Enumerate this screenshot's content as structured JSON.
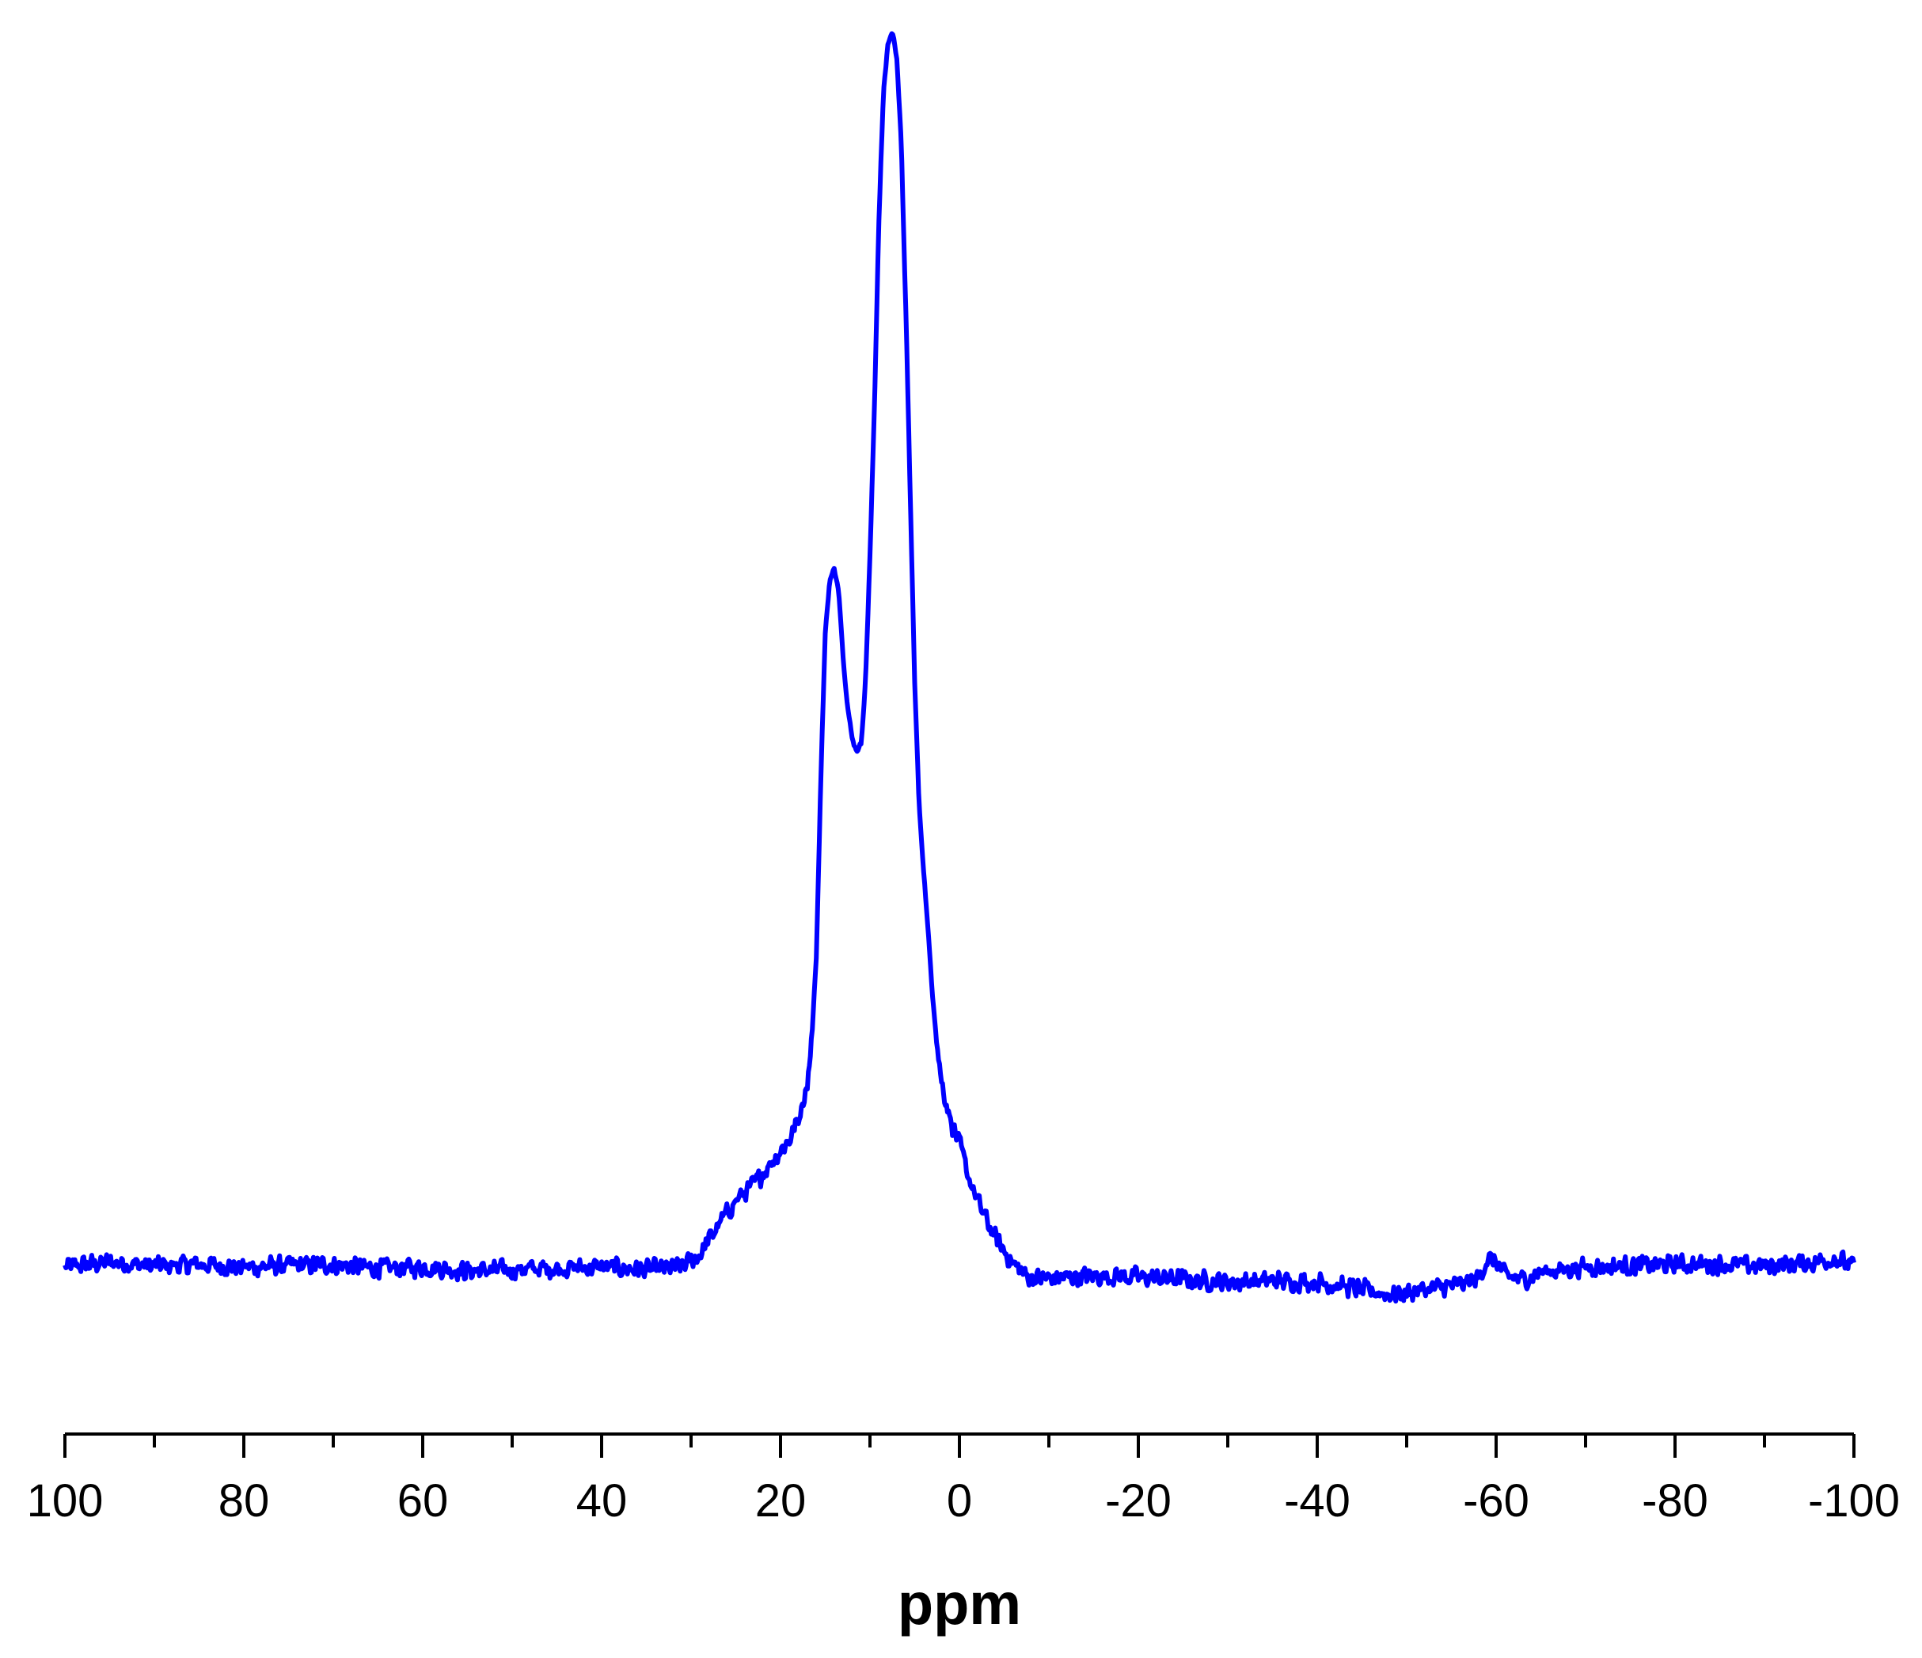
{
  "chart_data": {
    "type": "line",
    "title": "",
    "xlabel": "ppm",
    "ylabel": "",
    "xlim": [
      100,
      -100
    ],
    "x_reversed": true,
    "y_axis_shown": false,
    "grid": false,
    "legend": "none",
    "x_major_ticks": [
      100,
      80,
      60,
      40,
      20,
      0,
      -20,
      -40,
      -60,
      -80,
      -100
    ],
    "x_tick_labels": [
      "100",
      "80",
      "60",
      "40",
      "20",
      "0",
      "-20",
      "-40",
      "-60",
      "-80",
      "-100"
    ],
    "x_minor_ticks": [
      90,
      70,
      50,
      30,
      10,
      -10,
      -30,
      -50,
      -70,
      -90
    ],
    "series": [
      {
        "color": "#0000ff",
        "noise_amplitude": 0.9,
        "points": [
          [
            100,
            1.2
          ],
          [
            95,
            1.6
          ],
          [
            90,
            1.3
          ],
          [
            85,
            1.4
          ],
          [
            80,
            1.2
          ],
          [
            75,
            1.3
          ],
          [
            70,
            1.4
          ],
          [
            65,
            1.1
          ],
          [
            60,
            1.2
          ],
          [
            55,
            0.9
          ],
          [
            50,
            1.0
          ],
          [
            45,
            1.1
          ],
          [
            40,
            1.2
          ],
          [
            35,
            1.0
          ],
          [
            31,
            1.2
          ],
          [
            29,
            2.2
          ],
          [
            27,
            4.5
          ],
          [
            25,
            6.5
          ],
          [
            23,
            7.8
          ],
          [
            21,
            9.6
          ],
          [
            19,
            11.4
          ],
          [
            18,
            13.0
          ],
          [
            17,
            16.0
          ],
          [
            16.5,
            19.5
          ],
          [
            16,
            26.0
          ],
          [
            15.5,
            40.0
          ],
          [
            15,
            52.0
          ],
          [
            14.5,
            56.0
          ],
          [
            14,
            57.0
          ],
          [
            13.5,
            55.5
          ],
          [
            13,
            50.0
          ],
          [
            12.5,
            46.0
          ],
          [
            12,
            43.5
          ],
          [
            11.5,
            42.5
          ],
          [
            11,
            43.0
          ],
          [
            10.5,
            48.0
          ],
          [
            10,
            58.0
          ],
          [
            9.5,
            70.0
          ],
          [
            9,
            85.0
          ],
          [
            8.5,
            95.0
          ],
          [
            8,
            99.0
          ],
          [
            7.5,
            100.0
          ],
          [
            7,
            98.0
          ],
          [
            6.5,
            91.0
          ],
          [
            6,
            78.0
          ],
          [
            5.5,
            63.0
          ],
          [
            5,
            48.0
          ],
          [
            4.5,
            38.0
          ],
          [
            4,
            33.0
          ],
          [
            3.5,
            28.0
          ],
          [
            3,
            23.0
          ],
          [
            2.5,
            19.0
          ],
          [
            2,
            16.0
          ],
          [
            1.5,
            14.5
          ],
          [
            1,
            13.0
          ],
          [
            0,
            11.0
          ],
          [
            -1,
            8.5
          ],
          [
            -2,
            6.5
          ],
          [
            -3,
            5.0
          ],
          [
            -4,
            3.5
          ],
          [
            -5,
            2.5
          ],
          [
            -6,
            1.5
          ],
          [
            -7,
            0.8
          ],
          [
            -8,
            0.3
          ],
          [
            -10,
            0.3
          ],
          [
            -15,
            0.5
          ],
          [
            -20,
            0.4
          ],
          [
            -25,
            0.2
          ],
          [
            -30,
            0.0
          ],
          [
            -35,
            0.1
          ],
          [
            -40,
            0.0
          ],
          [
            -45,
            -0.6
          ],
          [
            -48,
            -1.0
          ],
          [
            -52,
            -0.6
          ],
          [
            -56,
            -0.2
          ],
          [
            -58,
            0.3
          ],
          [
            -59,
            1.8
          ],
          [
            -60,
            1.6
          ],
          [
            -61,
            0.5
          ],
          [
            -63,
            0.2
          ],
          [
            -65,
            0.8
          ],
          [
            -70,
            1.2
          ],
          [
            -75,
            1.3
          ],
          [
            -80,
            1.4
          ],
          [
            -85,
            1.4
          ],
          [
            -90,
            1.3
          ],
          [
            -95,
            1.5
          ],
          [
            -98,
            1.9
          ],
          [
            -100,
            1.2
          ]
        ]
      }
    ]
  }
}
